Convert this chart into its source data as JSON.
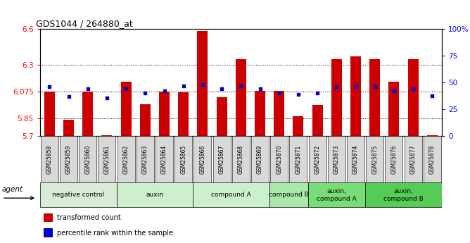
{
  "title": "GDS1044 / 264880_at",
  "samples": [
    "GSM25858",
    "GSM25859",
    "GSM25860",
    "GSM25861",
    "GSM25862",
    "GSM25863",
    "GSM25864",
    "GSM25865",
    "GSM25866",
    "GSM25867",
    "GSM25868",
    "GSM25869",
    "GSM25870",
    "GSM25871",
    "GSM25872",
    "GSM25873",
    "GSM25874",
    "GSM25875",
    "GSM25876",
    "GSM25877",
    "GSM25878"
  ],
  "bar_values": [
    6.075,
    5.84,
    6.075,
    5.71,
    6.16,
    5.97,
    6.075,
    6.07,
    6.585,
    6.025,
    6.35,
    6.08,
    6.08,
    5.87,
    5.96,
    6.35,
    6.37,
    6.35,
    6.16,
    6.35,
    5.71
  ],
  "dot_values": [
    46,
    37,
    44,
    36,
    44,
    40,
    42,
    47,
    48,
    44,
    47,
    44,
    40,
    39,
    40,
    46,
    46,
    46,
    42,
    44,
    38
  ],
  "bar_color": "#cc0000",
  "dot_color": "#0000cc",
  "ymin": 5.7,
  "ymax": 6.6,
  "yticks": [
    5.7,
    5.85,
    6.075,
    6.3,
    6.6
  ],
  "ytick_labels": [
    "5.7",
    "5.85",
    "6.075",
    "6.3",
    "6.6"
  ],
  "y2min": 0,
  "y2max": 100,
  "y2ticks": [
    0,
    25,
    50,
    75,
    100
  ],
  "y2tick_labels": [
    "0",
    "25",
    "50",
    "75",
    "100%"
  ],
  "groups": [
    {
      "label": "negative control",
      "start": 0,
      "end": 3,
      "color": "#d8ecd8"
    },
    {
      "label": "auxin",
      "start": 4,
      "end": 7,
      "color": "#ccf0cc"
    },
    {
      "label": "compound A",
      "start": 8,
      "end": 11,
      "color": "#ccf0cc"
    },
    {
      "label": "compound B",
      "start": 12,
      "end": 13,
      "color": "#aae8aa"
    },
    {
      "label": "auxin,\ncompound A",
      "start": 14,
      "end": 16,
      "color": "#77dd77"
    },
    {
      "label": "auxin,\ncompound B",
      "start": 17,
      "end": 20,
      "color": "#55cc55"
    }
  ],
  "sample_box_color": "#d8d8d8",
  "legend": [
    {
      "label": "transformed count",
      "color": "#cc0000"
    },
    {
      "label": "percentile rank within the sample",
      "color": "#0000cc"
    }
  ]
}
